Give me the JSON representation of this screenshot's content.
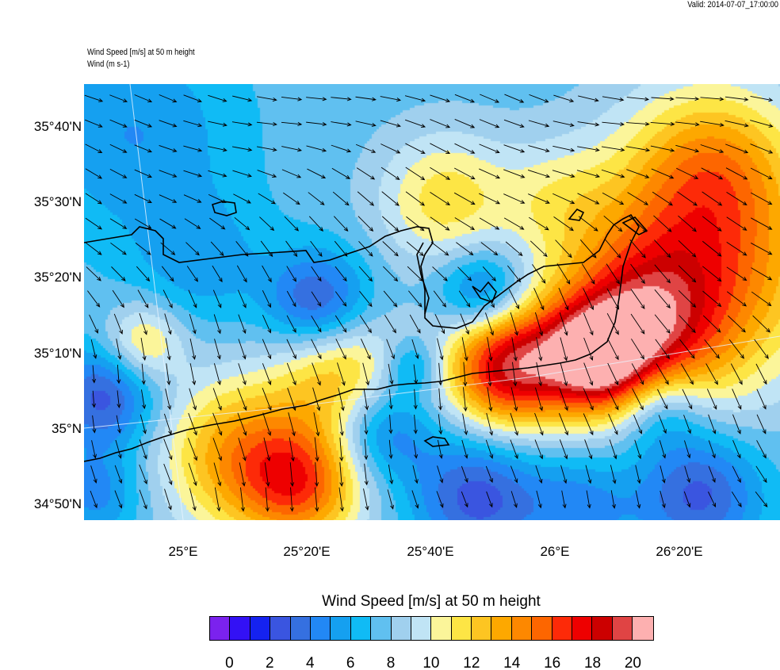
{
  "header": {
    "valid": "Valid: 2014-07-07_17:00:00",
    "subtitle_1": "Wind Speed [m/s] at 50 m height",
    "subtitle_2": "Wind   (m s-1)"
  },
  "axes": {
    "lat_labels": [
      "35°40'N",
      "35°30'N",
      "35°20'N",
      "35°10'N",
      "35°N",
      "34°50'N"
    ],
    "lon_labels": [
      "25°E",
      "25°20'E",
      "25°40'E",
      "26°E",
      "26°20'E"
    ]
  },
  "colorbar": {
    "title": "Wind Speed [m/s] at 50 m height",
    "tick_labels": [
      "0",
      "2",
      "4",
      "6",
      "8",
      "10",
      "12",
      "14",
      "16",
      "18",
      "20"
    ],
    "levels": [
      0,
      1,
      2,
      3,
      4,
      5,
      6,
      7,
      8,
      9,
      10,
      11,
      12,
      13,
      14,
      15,
      16,
      17,
      18,
      19,
      20
    ],
    "colors": [
      "#7b22ee",
      "#3311f5",
      "#1522f0",
      "#3a55e0",
      "#3570e0",
      "#2288f5",
      "#15a0f0",
      "#10bbf5",
      "#60c0f0",
      "#a0d0ee",
      "#c0e4f5",
      "#fbf59a",
      "#fde545",
      "#fdc522",
      "#fda800",
      "#fd8800",
      "#fd6600",
      "#fd2a08",
      "#ee0000",
      "#cc0000",
      "#e04444",
      "#fdb0b0"
    ]
  }
}
